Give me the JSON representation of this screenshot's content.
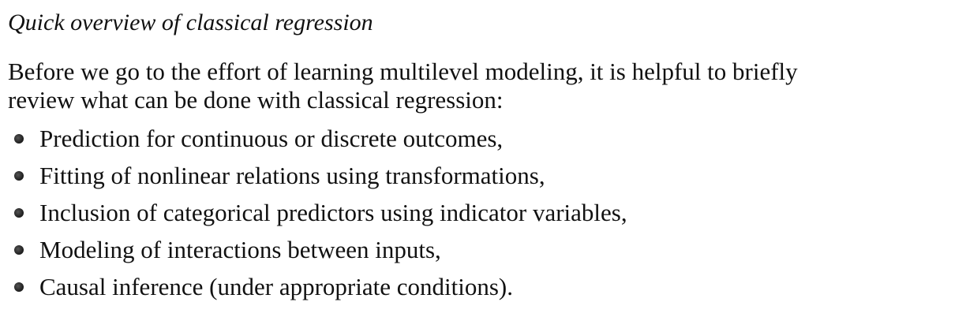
{
  "section": {
    "title": "Quick overview of classical regression"
  },
  "intro": {
    "line1": "Before we go to the effort of learning multilevel modeling, it is helpful to briefly",
    "line2": "review what can be done with classical regression:"
  },
  "bullets": [
    {
      "text": "Prediction for continuous or discrete outcomes,",
      "icon": "bullet-icon"
    },
    {
      "text": "Fitting of nonlinear relations using transformations,",
      "icon": "bullet-icon"
    },
    {
      "text": "Inclusion of categorical predictors using indicator variables,",
      "icon": "bullet-icon"
    },
    {
      "text": "Modeling of interactions between inputs,",
      "icon": "bullet-icon"
    },
    {
      "text": "Causal inference (under appropriate conditions).",
      "icon": "bullet-icon"
    }
  ]
}
